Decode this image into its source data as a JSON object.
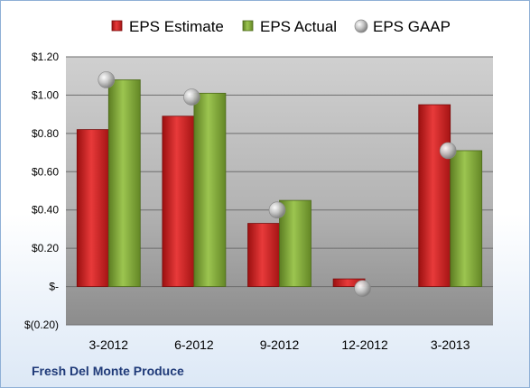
{
  "chart_data": {
    "type": "bar",
    "categories": [
      "3-2012",
      "6-2012",
      "9-2012",
      "12-2012",
      "3-2013"
    ],
    "series": [
      {
        "name": "EPS Estimate",
        "kind": "bar",
        "color": "#d42a2a",
        "values": [
          0.82,
          0.89,
          0.33,
          0.04,
          0.95
        ]
      },
      {
        "name": "EPS Actual",
        "kind": "bar",
        "color": "#7fa53a",
        "values": [
          1.08,
          1.01,
          0.45,
          0.0,
          0.71
        ]
      },
      {
        "name": "EPS GAAP",
        "kind": "marker",
        "color": "#a9a9a9",
        "values": [
          1.08,
          0.99,
          0.4,
          -0.01,
          0.71
        ]
      }
    ],
    "y_ticks": [
      {
        "value": 1.2,
        "label": "$1.20"
      },
      {
        "value": 1.0,
        "label": "$1.00"
      },
      {
        "value": 0.8,
        "label": "$0.80"
      },
      {
        "value": 0.6,
        "label": "$0.60"
      },
      {
        "value": 0.4,
        "label": "$0.40"
      },
      {
        "value": 0.2,
        "label": "$0.20"
      },
      {
        "value": 0.0,
        "label": "$-"
      },
      {
        "value": -0.2,
        "label": "$(0.20)"
      }
    ],
    "ylim": [
      -0.2,
      1.2
    ],
    "grid": true,
    "legend_position": "top"
  },
  "footer": {
    "company": "Fresh Del Monte Produce"
  }
}
